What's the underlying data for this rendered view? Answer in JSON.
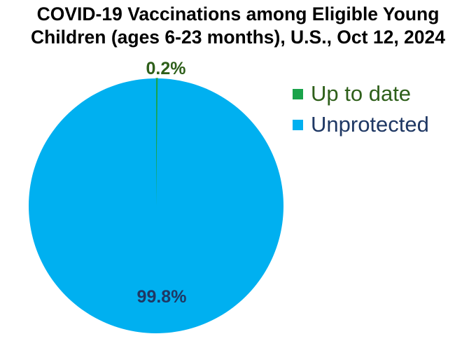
{
  "title": {
    "line1": "COVID-19 Vaccinations among Eligible Young",
    "line2": "Children (ages 6-23 months), U.S., Oct 12, 2024"
  },
  "colors": {
    "up_to_date": "#1aa34a",
    "unprotected": "#00b0f0",
    "label_up_to_date": "#2e5f1a",
    "label_unprotected": "#1f3864",
    "legend_up_to_date_text": "#2e5f1a",
    "legend_unprotected_text": "#1f3864"
  },
  "chart_data": {
    "type": "pie",
    "title": "COVID-19 Vaccinations among Eligible Young Children (ages 6-23 months), U.S., Oct 12, 2024",
    "categories": [
      "Up to date",
      "Unprotected"
    ],
    "values": [
      0.2,
      99.8
    ],
    "data_labels": [
      "0.2%",
      "99.8%"
    ],
    "unit": "%",
    "legend_position": "right"
  }
}
